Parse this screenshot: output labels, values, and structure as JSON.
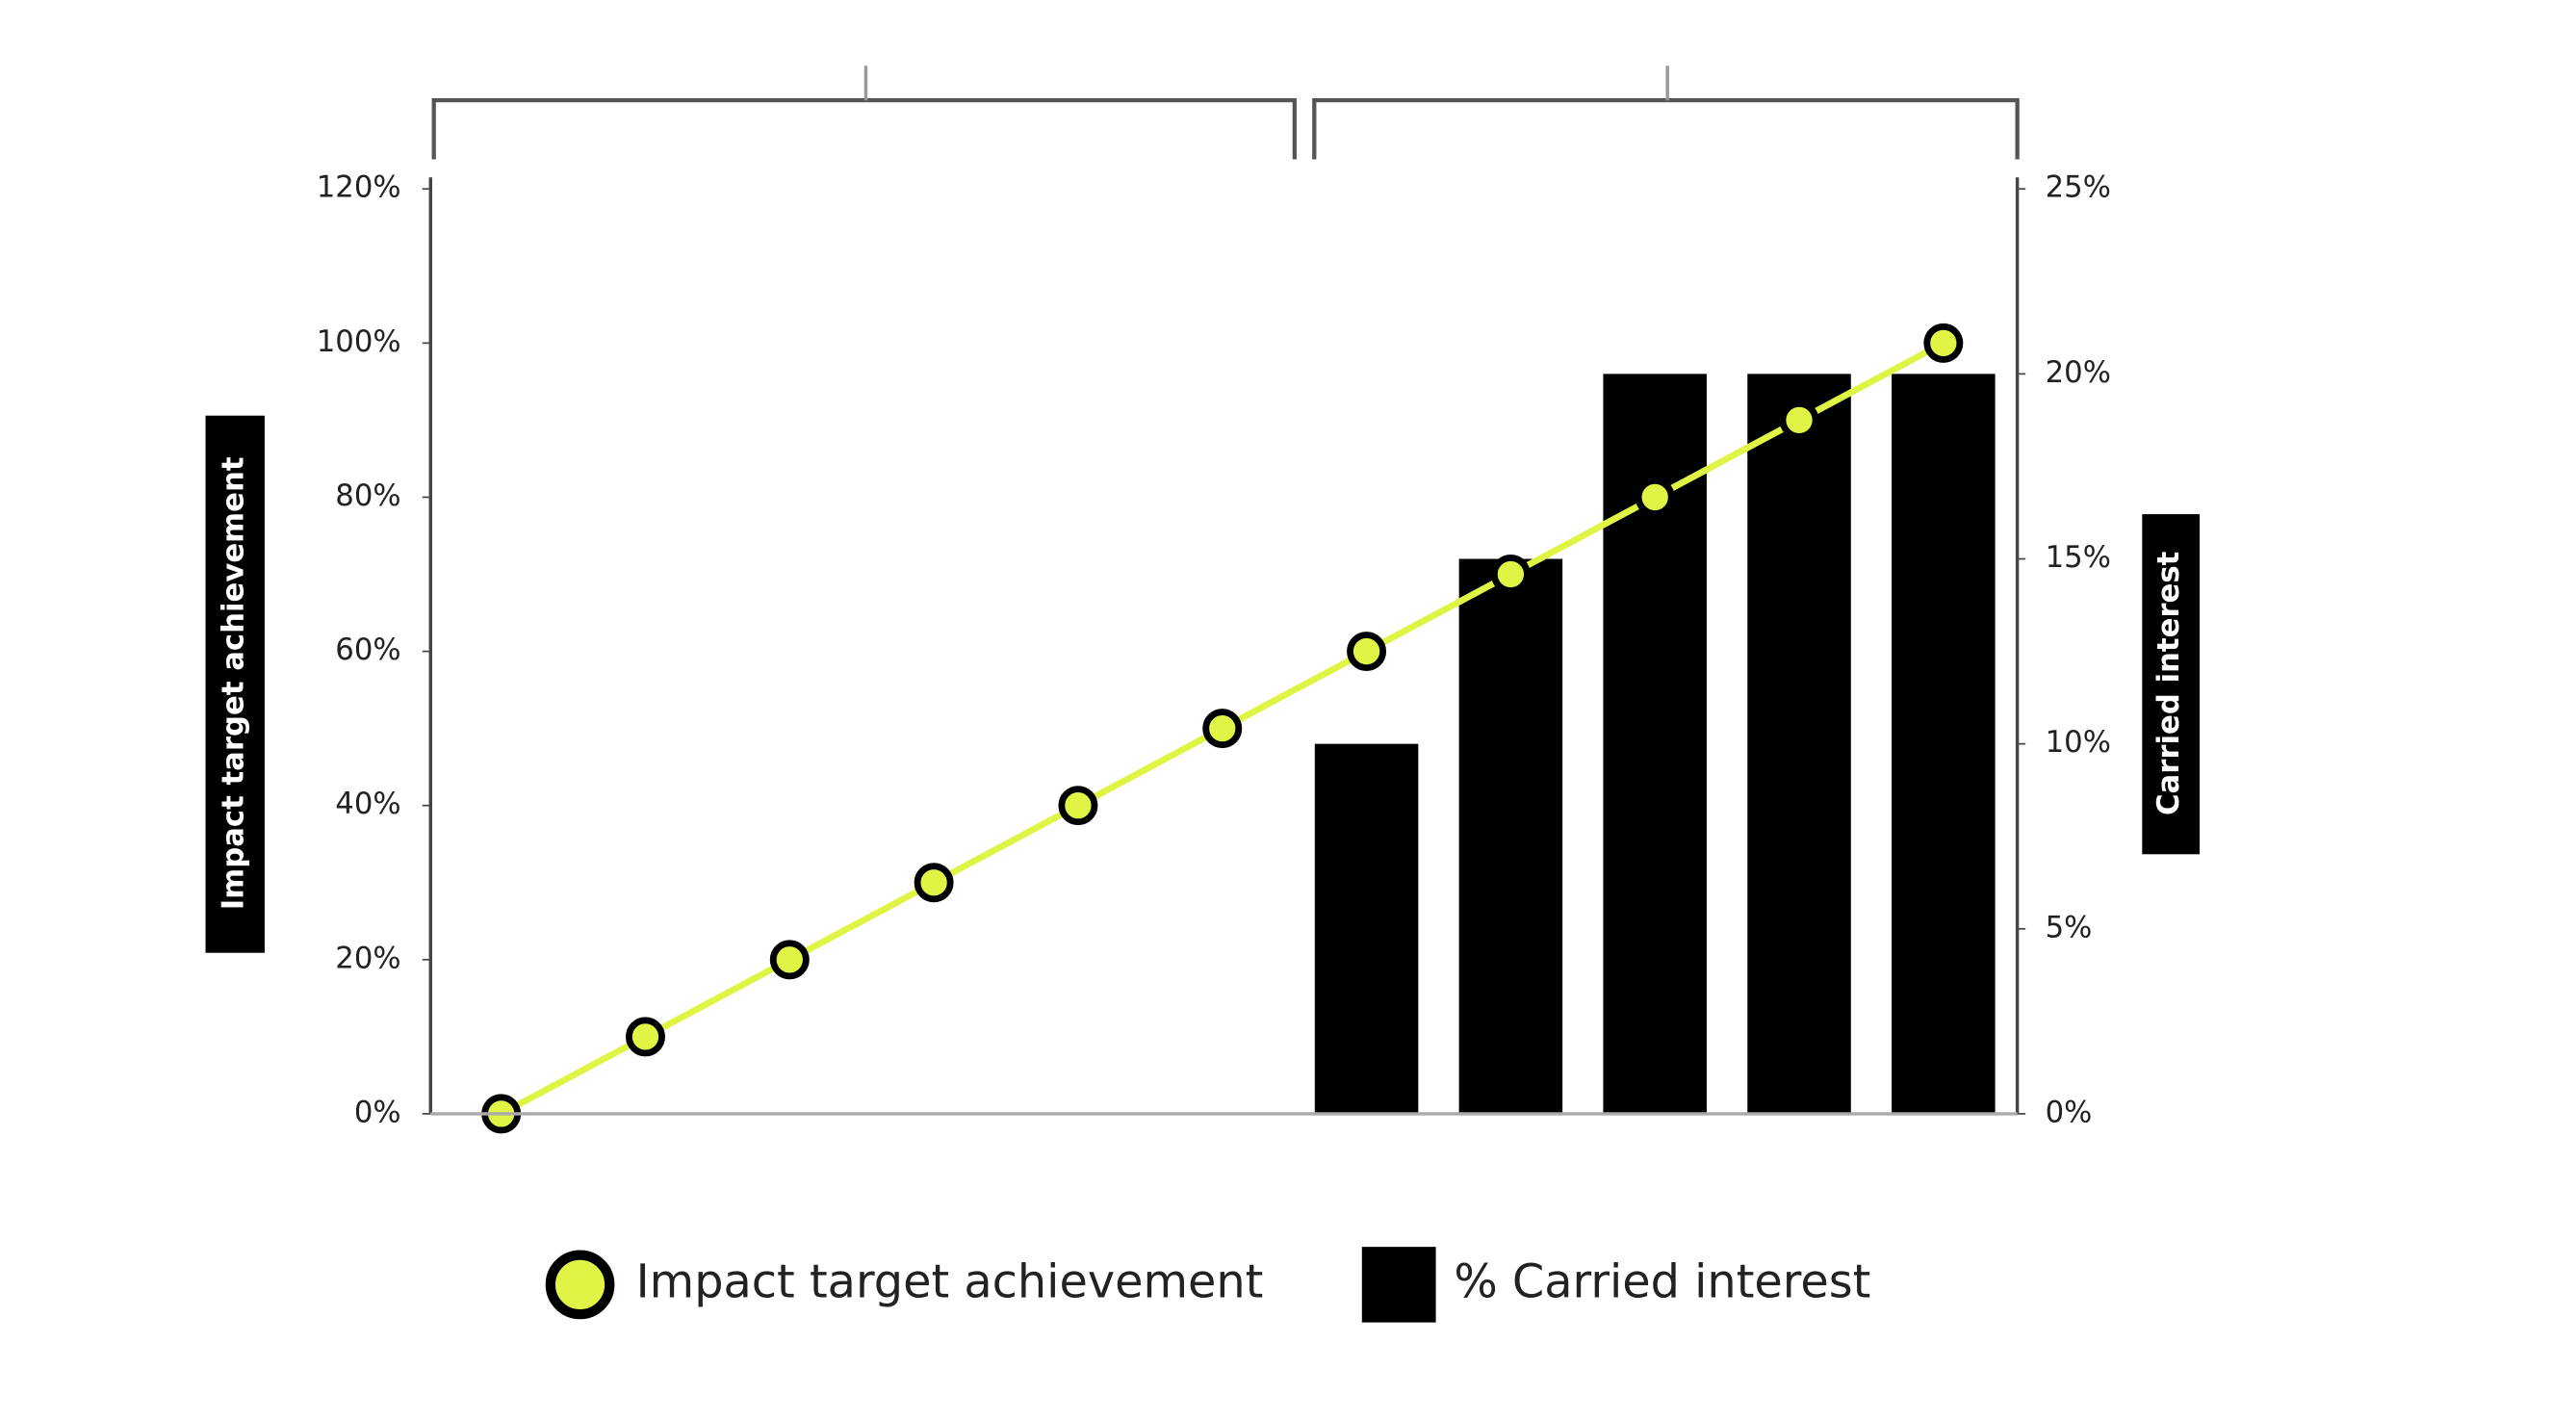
{
  "chart_data": {
    "type": "combo",
    "categories": [
      null,
      null,
      null,
      null,
      null,
      null,
      null,
      null,
      null,
      null,
      null
    ],
    "series": [
      {
        "name": "Impact target achievement",
        "type": "line",
        "color": "#dff445",
        "values": [
          0,
          10,
          20,
          30,
          40,
          50,
          60,
          70,
          80,
          90,
          100
        ]
      },
      {
        "name": "% Carried interest",
        "type": "bar",
        "axis": "y2",
        "color": "#000000",
        "values": [
          null,
          null,
          null,
          null,
          null,
          null,
          10,
          15,
          20,
          20,
          20
        ]
      }
    ],
    "ylabel": "Impact target achievement",
    "y2label": "Carried interest",
    "ylim": [
      0,
      120
    ],
    "yticks": [
      {
        "value": 0,
        "label": "0%"
      },
      {
        "value": 20,
        "label": "20%"
      },
      {
        "value": 40,
        "label": "40%"
      },
      {
        "value": 60,
        "label": "60%"
      },
      {
        "value": 80,
        "label": "80%"
      },
      {
        "value": 100,
        "label": "100%"
      },
      {
        "value": 120,
        "label": "120%"
      }
    ],
    "y2lim": [
      0,
      25
    ],
    "y2ticks": [
      {
        "value": 0,
        "label": "0%"
      },
      {
        "value": 5,
        "label": "5%"
      },
      {
        "value": 10,
        "label": "10%"
      },
      {
        "value": 15,
        "label": "15%"
      },
      {
        "value": 20,
        "label": "20%"
      },
      {
        "value": 25,
        "label": "25%"
      }
    ],
    "legend": "bottom"
  }
}
